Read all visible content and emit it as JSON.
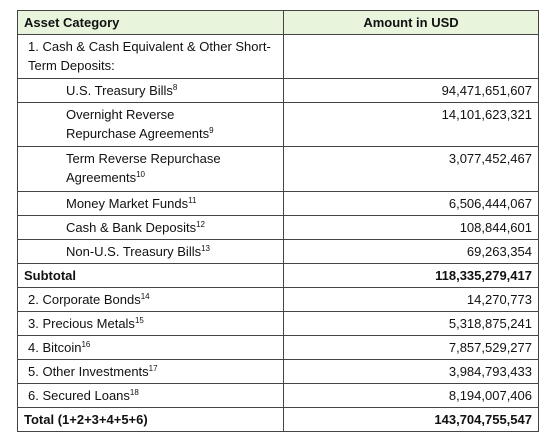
{
  "header": {
    "category": "Asset Category",
    "amount": "Amount in USD"
  },
  "rows": [
    {
      "label": "1. Cash & Cash Equivalent & Other Short-Term Deposits:",
      "amount": ""
    },
    {
      "label": "U.S. Treasury Bills",
      "note": "8",
      "amount": "94,471,651,607"
    },
    {
      "label": "Overnight Reverse Repurchase Agreements",
      "note": "9",
      "amount": "14,101,623,321"
    },
    {
      "label": "Term Reverse Repurchase Agreements",
      "note": "10",
      "amount": "3,077,452,467"
    },
    {
      "label": "Money Market Funds",
      "note": "11",
      "amount": "6,506,444,067"
    },
    {
      "label": "Cash & Bank Deposits",
      "note": "12",
      "amount": "108,844,601"
    },
    {
      "label": "Non-U.S. Treasury Bills",
      "note": "13",
      "amount": "69,263,354"
    },
    {
      "label": "Subtotal",
      "amount": "118,335,279,417"
    },
    {
      "label": "2. Corporate Bonds",
      "note": "14",
      "amount": "14,270,773"
    },
    {
      "label": "3. Precious Metals",
      "note": "15",
      "amount": "5,318,875,241"
    },
    {
      "label": "4. Bitcoin",
      "note": "16",
      "amount": "7,857,529,277"
    },
    {
      "label": "5. Other Investments",
      "note": "17",
      "amount": "3,984,793,433"
    },
    {
      "label": "6. Secured Loans",
      "note": "18",
      "amount": "8,194,007,406"
    },
    {
      "label": "Total (1+2+3+4+5+6)",
      "amount": "143,704,755,547"
    }
  ]
}
